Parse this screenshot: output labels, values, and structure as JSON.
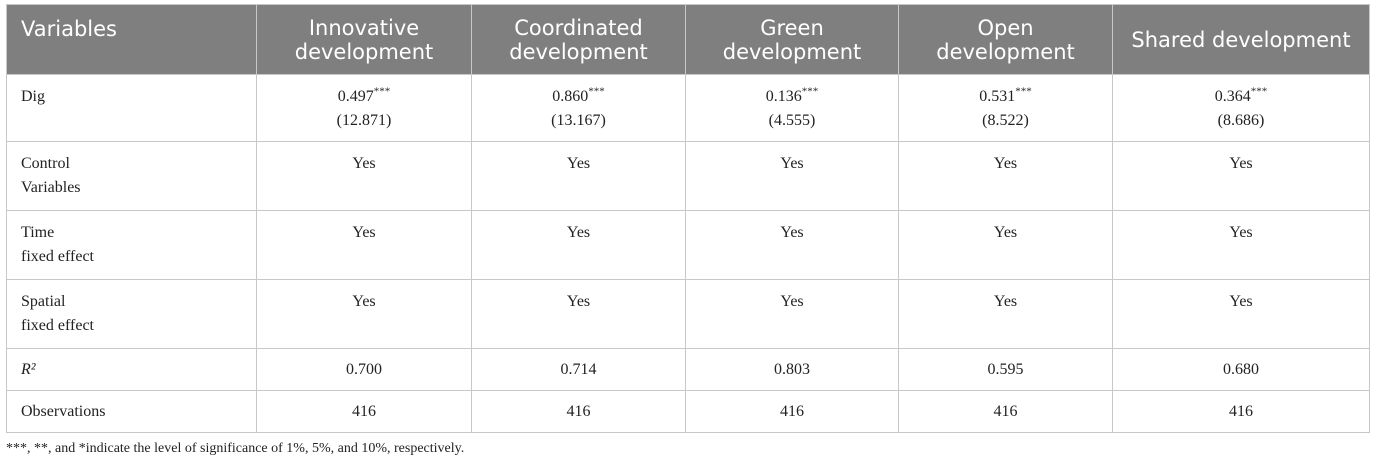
{
  "table": {
    "header": [
      "Variables",
      "Innovative development",
      "Coordinated development",
      "Green development",
      "Open development",
      "Shared development"
    ],
    "rows": [
      [
        "Dig",
        {
          "coef": "0.497",
          "stars": "***",
          "t": "(12.871)"
        },
        {
          "coef": "0.860",
          "stars": "***",
          "t": "(13.167)"
        },
        {
          "coef": "0.136",
          "stars": "***",
          "t": "(4.555)"
        },
        {
          "coef": "0.531",
          "stars": "***",
          "t": "(8.522)"
        },
        {
          "coef": "0.364",
          "stars": "***",
          "t": "(8.686)"
        }
      ],
      [
        "Control\nVariables",
        "Yes",
        "Yes",
        "Yes",
        "Yes",
        "Yes"
      ],
      [
        "Time\nfixed effect",
        "Yes",
        "Yes",
        "Yes",
        "Yes",
        "Yes"
      ],
      [
        "Spatial\nfixed effect",
        "Yes",
        "Yes",
        "Yes",
        "Yes",
        "Yes"
      ],
      [
        "R²",
        "0.700",
        "0.714",
        "0.803",
        "0.595",
        "0.680"
      ],
      [
        "Observations",
        "416",
        "416",
        "416",
        "416",
        "416"
      ]
    ]
  },
  "footnote": "***, **, and *indicate the level of significance of 1%, 5%, and 10%, respectively."
}
